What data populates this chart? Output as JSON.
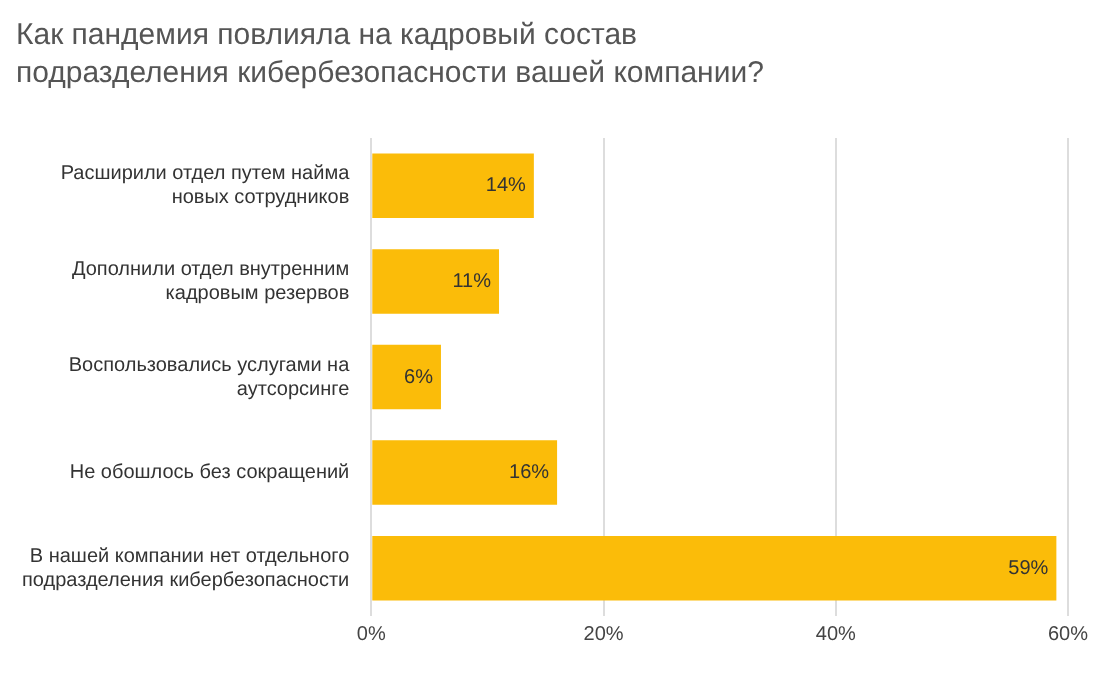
{
  "chart_data": {
    "type": "bar",
    "orientation": "horizontal",
    "title": "Как пандемия повлияла на кадровый состав подразделения кибербезопасности вашей компании?",
    "categories": [
      "Расширили отдел путем найма новых сотрудников",
      "Дополнили отдел внутренним кадровым резервов",
      "Воспользовались услугами на аутсорсинге",
      "Не обошлось без сокращений",
      "В нашей компании нет отдельного подразделения кибербезопасности"
    ],
    "values": [
      14,
      11,
      6,
      16,
      59
    ],
    "value_labels": [
      "14%",
      "11%",
      "6%",
      "16%",
      "59%"
    ],
    "color": "#fbbc09",
    "xlim": [
      0,
      60
    ],
    "xticks": [
      {
        "value": 0,
        "label": "0%"
      },
      {
        "value": 20,
        "label": "20%"
      },
      {
        "value": 40,
        "label": "40%"
      },
      {
        "value": 60,
        "label": "60%"
      }
    ],
    "grid": "x",
    "legend": false
  }
}
